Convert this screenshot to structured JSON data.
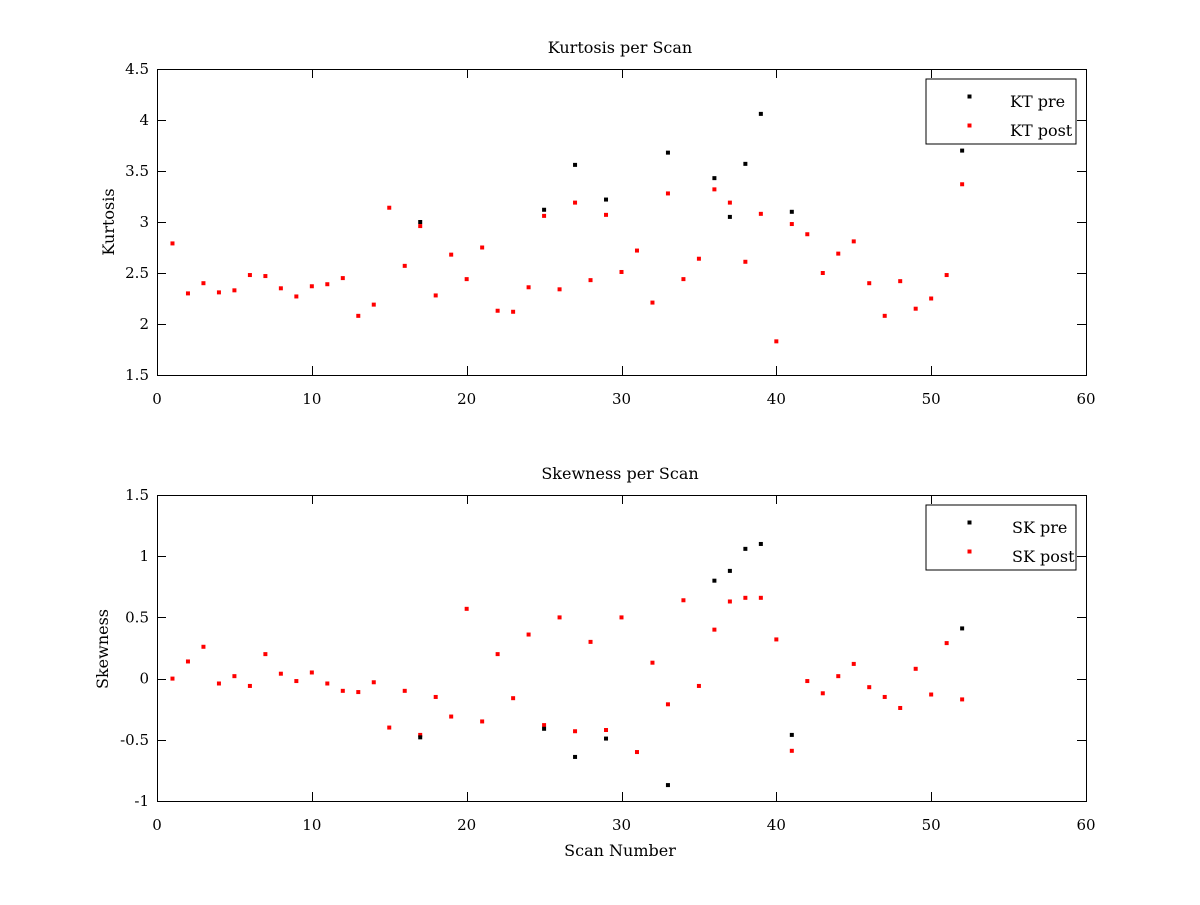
{
  "colors": {
    "pre": "#000000",
    "post": "#ff0000",
    "axes": "#000000",
    "background": "#ffffff"
  },
  "chart_data": [
    {
      "type": "scatter",
      "title": "Kurtosis per Scan",
      "xlabel": "",
      "ylabel": "Kurtosis",
      "xlim": [
        0,
        60
      ],
      "ylim": [
        1.5,
        4.5
      ],
      "xticks": [
        0,
        10,
        20,
        30,
        40,
        50,
        60
      ],
      "yticks": [
        1.5,
        2,
        2.5,
        3,
        3.5,
        4,
        4.5
      ],
      "xtick_labels": [
        "0",
        "10",
        "20",
        "30",
        "40",
        "50",
        "60"
      ],
      "ytick_labels": [
        "1.5",
        "2",
        "2.5",
        "3",
        "3.5",
        "4",
        "4.5"
      ],
      "grid": false,
      "legend_position": "top-right",
      "series": [
        {
          "name": "KT pre",
          "color": "#000000",
          "x": [
            17,
            25,
            27,
            29,
            33,
            36,
            37,
            38,
            39,
            41,
            52
          ],
          "y": [
            3.0,
            3.12,
            3.56,
            3.22,
            3.68,
            3.43,
            3.05,
            3.57,
            4.06,
            3.1,
            3.7
          ]
        },
        {
          "name": "KT post",
          "color": "#ff0000",
          "x": [
            1,
            2,
            3,
            4,
            5,
            6,
            7,
            8,
            9,
            10,
            11,
            12,
            13,
            14,
            15,
            16,
            17,
            18,
            19,
            20,
            21,
            22,
            23,
            24,
            25,
            26,
            27,
            28,
            29,
            30,
            31,
            32,
            33,
            34,
            35,
            36,
            37,
            38,
            39,
            40,
            41,
            42,
            43,
            44,
            45,
            46,
            47,
            48,
            49,
            50,
            51,
            52
          ],
          "y": [
            2.79,
            2.3,
            2.4,
            2.31,
            2.33,
            2.48,
            2.47,
            2.35,
            2.27,
            2.37,
            2.39,
            2.45,
            2.08,
            2.19,
            3.14,
            2.57,
            2.96,
            2.28,
            2.68,
            2.44,
            2.75,
            2.13,
            2.12,
            2.36,
            3.06,
            2.34,
            3.19,
            2.43,
            3.07,
            2.51,
            2.72,
            2.21,
            3.28,
            2.44,
            2.64,
            3.32,
            3.19,
            2.61,
            3.08,
            1.83,
            2.98,
            2.88,
            2.5,
            2.69,
            2.81,
            2.4,
            2.08,
            2.42,
            2.15,
            2.25,
            2.48,
            3.37
          ]
        }
      ]
    },
    {
      "type": "scatter",
      "title": "Skewness per Scan",
      "xlabel": "Scan Number",
      "ylabel": "Skewness",
      "xlim": [
        0,
        60
      ],
      "ylim": [
        -1,
        1.5
      ],
      "xticks": [
        0,
        10,
        20,
        30,
        40,
        50,
        60
      ],
      "yticks": [
        -1,
        -0.5,
        0,
        0.5,
        1,
        1.5
      ],
      "xtick_labels": [
        "0",
        "10",
        "20",
        "30",
        "40",
        "50",
        "60"
      ],
      "ytick_labels": [
        "-1",
        "-0.5",
        "0",
        "0.5",
        "1",
        "1.5"
      ],
      "grid": false,
      "legend_position": "top-right",
      "series": [
        {
          "name": "SK pre",
          "color": "#000000",
          "x": [
            17,
            25,
            27,
            29,
            33,
            36,
            37,
            38,
            39,
            41,
            52
          ],
          "y": [
            -0.48,
            -0.41,
            -0.64,
            -0.49,
            -0.87,
            0.8,
            0.88,
            1.06,
            1.1,
            -0.46,
            0.41
          ]
        },
        {
          "name": "SK post",
          "color": "#ff0000",
          "x": [
            1,
            2,
            3,
            4,
            5,
            6,
            7,
            8,
            9,
            10,
            11,
            12,
            13,
            14,
            15,
            16,
            17,
            18,
            19,
            20,
            21,
            22,
            23,
            24,
            25,
            26,
            27,
            28,
            29,
            30,
            31,
            32,
            33,
            34,
            35,
            36,
            37,
            38,
            39,
            40,
            41,
            42,
            43,
            44,
            45,
            46,
            47,
            48,
            49,
            50,
            51,
            52
          ],
          "y": [
            0.0,
            0.14,
            0.26,
            -0.04,
            0.02,
            -0.06,
            0.2,
            0.04,
            -0.02,
            0.05,
            -0.04,
            -0.1,
            -0.11,
            -0.03,
            -0.4,
            -0.1,
            -0.46,
            -0.15,
            -0.31,
            0.57,
            -0.35,
            0.2,
            -0.16,
            0.36,
            -0.38,
            0.5,
            -0.43,
            0.3,
            -0.42,
            0.5,
            -0.6,
            0.13,
            -0.21,
            0.64,
            -0.06,
            0.4,
            0.63,
            0.66,
            0.66,
            0.32,
            -0.59,
            -0.02,
            -0.12,
            0.02,
            0.12,
            -0.07,
            -0.15,
            -0.24,
            0.08,
            -0.13,
            0.29,
            -0.17
          ]
        }
      ]
    }
  ]
}
